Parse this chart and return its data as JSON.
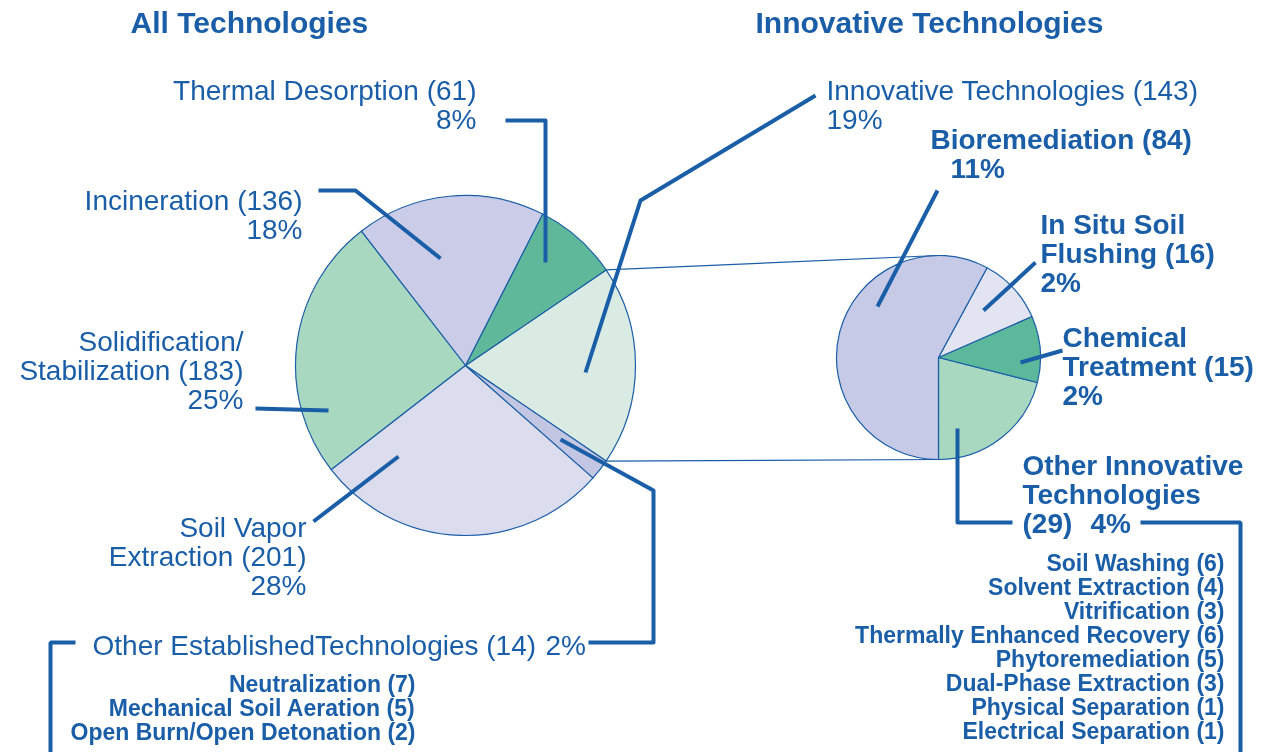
{
  "chart_data": [
    {
      "type": "pie",
      "title": "All Technologies",
      "categories": [
        "Innovative Technologies (143)",
        "Thermal Desorption (61)",
        "Incineration (136)",
        "Solidification/\nStabilization (183)",
        "Soil Vapor\nExtraction (201)",
        "Other EstablishedTechnologies (14)"
      ],
      "values": [
        19,
        8,
        18,
        25,
        28,
        2
      ],
      "value_labels": [
        "19%",
        "8%",
        "18%",
        "25%",
        "28%",
        "2%"
      ],
      "colors": [
        "#d9ebe3",
        "#5fb89a",
        "#cbcde8",
        "#a8d8c0",
        "#dcdcef",
        "#c3c6e3"
      ],
      "annotations": [
        "Neutralization (7)",
        "Mechanical Soil Aeration (5)",
        "Open Burn/Open Detonation (2)"
      ]
    },
    {
      "type": "pie",
      "title": "Innovative Technologies",
      "categories": [
        "Other Innovative\nTechnologies\n(29)",
        "Chemical\nTreatment (15)",
        "In Situ Soil\nFlushing (16)",
        "Bioremediation (84)"
      ],
      "values": [
        4,
        2,
        2,
        11
      ],
      "value_labels": [
        "4%",
        "2%",
        "2%",
        "11%"
      ],
      "colors": [
        "#a9d8c0",
        "#5cb89b",
        "#e2e4f2",
        "#c6cae6"
      ],
      "annotations": [
        "Soil Washing (6)",
        "Solvent Extraction (4)",
        "Vitrification (3)",
        "Thermally Enhanced Recovery (6)",
        "Phytoremediation (5)",
        "Dual-Phase Extraction (3)",
        "Physical Separation (1)",
        "Electrical Separation (1)"
      ]
    }
  ]
}
